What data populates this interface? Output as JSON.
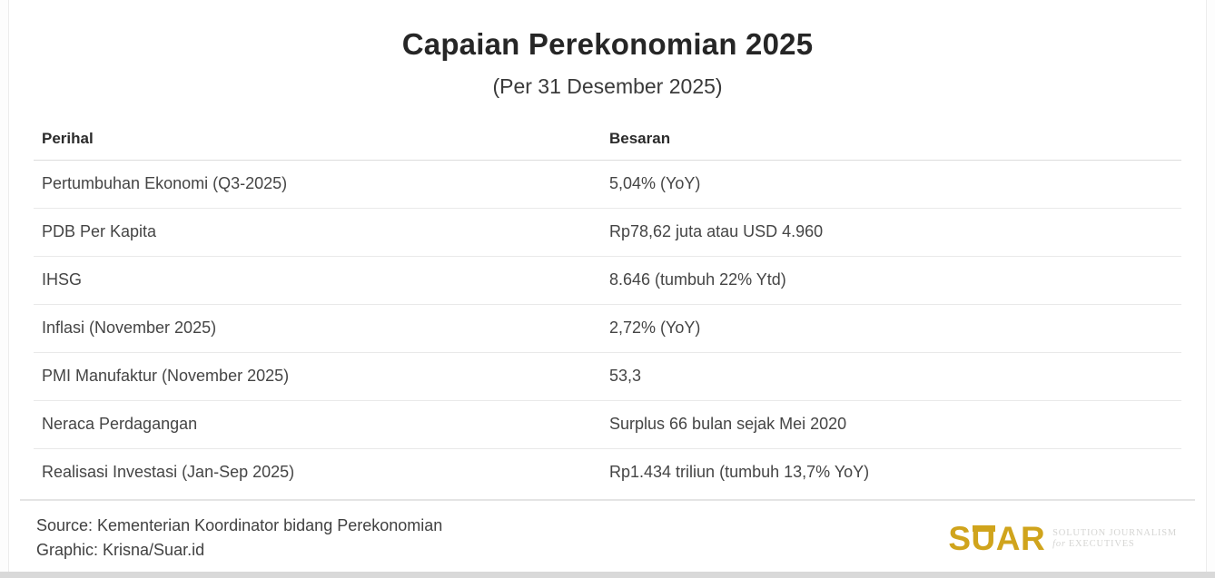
{
  "header": {
    "title": "Capaian Perekonomian 2025",
    "subtitle": "(Per 31 Desember 2025)"
  },
  "chart_data": {
    "type": "table",
    "title": "Capaian Perekonomian 2025",
    "subtitle": "(Per 31 Desember 2025)",
    "columns": [
      "Perihal",
      "Besaran"
    ],
    "rows": [
      [
        "Pertumbuhan Ekonomi (Q3-2025)",
        "5,04% (YoY)"
      ],
      [
        "PDB Per Kapita",
        "Rp78,62 juta atau USD 4.960"
      ],
      [
        "IHSG",
        "8.646 (tumbuh 22% Ytd)"
      ],
      [
        "Inflasi (November 2025)",
        "2,72% (YoY)"
      ],
      [
        "PMI Manufaktur (November 2025)",
        "53,3"
      ],
      [
        "Neraca Perdagangan",
        "Surplus 66 bulan sejak Mei 2020"
      ],
      [
        "Realisasi Investasi (Jan-Sep 2025)",
        "Rp1.434 triliun (tumbuh 13,7% YoY)"
      ]
    ],
    "source": "Source: Kementerian Koordinator bidang Perekonomian",
    "credit": "Graphic: Krisna/Suar.id"
  },
  "footer": {
    "source": "Source: Kementerian Koordinator bidang Perekonomian",
    "graphic": "Graphic: Krisna/Suar.id",
    "logo": {
      "wordmark": "SUAR",
      "tagline_line1": "SOLUTION JOURNALISM",
      "tagline_for": "for",
      "tagline_line2": "EXECUTIVES"
    }
  },
  "colors": {
    "brand_gold": "#d0a41c",
    "divider": "#e9e9e9",
    "header_divider": "#dcdcdc",
    "text": "#454545",
    "title_text": "#262626",
    "bottom_strip": "#d9d9d9",
    "tagline_gray": "#d5d5d3"
  }
}
